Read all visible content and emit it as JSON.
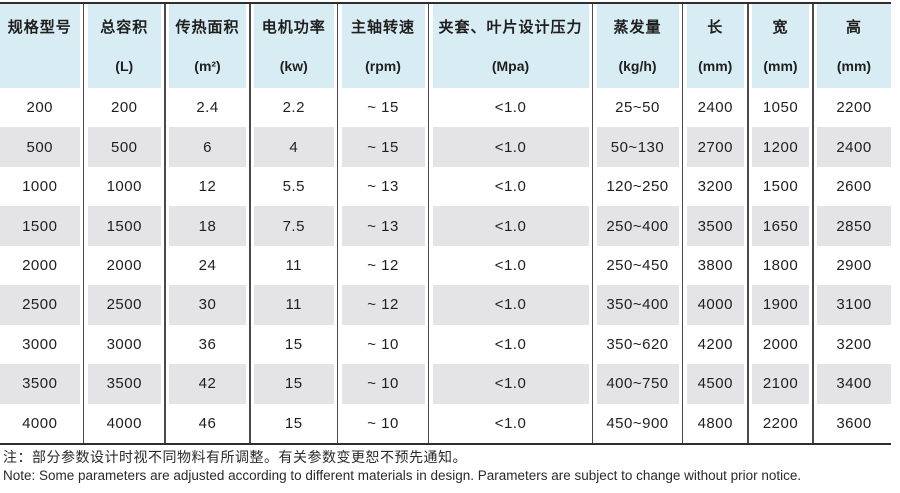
{
  "table": {
    "columns": [
      {
        "title": "规格型号",
        "unit": ""
      },
      {
        "title": "总容积",
        "unit": "(L)"
      },
      {
        "title": "传热面积",
        "unit": "(m²)"
      },
      {
        "title": "电机功率",
        "unit": "(kw)"
      },
      {
        "title": "主轴转速",
        "unit": "(rpm)"
      },
      {
        "title": "夹套、叶片设计压力",
        "unit": "(Mpa)"
      },
      {
        "title": "蒸发量",
        "unit": "(kg/h)"
      },
      {
        "title": "长",
        "unit": "(mm)"
      },
      {
        "title": "宽",
        "unit": "(mm)"
      },
      {
        "title": "高",
        "unit": "(mm)"
      }
    ],
    "rows": [
      [
        "200",
        "200",
        "2.4",
        "2.2",
        "~ 15",
        "<1.0",
        "25~50",
        "2400",
        "1050",
        "2200"
      ],
      [
        "500",
        "500",
        "6",
        "4",
        "~ 15",
        "<1.0",
        "50~130",
        "2700",
        "1200",
        "2400"
      ],
      [
        "1000",
        "1000",
        "12",
        "5.5",
        "~ 13",
        "<1.0",
        "120~250",
        "3200",
        "1500",
        "2600"
      ],
      [
        "1500",
        "1500",
        "18",
        "7.5",
        "~ 13",
        "<1.0",
        "250~400",
        "3500",
        "1650",
        "2850"
      ],
      [
        "2000",
        "2000",
        "24",
        "11",
        "~ 12",
        "<1.0",
        "250~450",
        "3800",
        "1800",
        "2900"
      ],
      [
        "2500",
        "2500",
        "30",
        "11",
        "~ 12",
        "<1.0",
        "350~400",
        "4000",
        "1900",
        "3100"
      ],
      [
        "3000",
        "3000",
        "36",
        "15",
        "~ 10",
        "<1.0",
        "350~620",
        "4200",
        "2000",
        "3200"
      ],
      [
        "3500",
        "3500",
        "42",
        "15",
        "~ 10",
        "<1.0",
        "400~750",
        "4500",
        "2100",
        "3400"
      ],
      [
        "4000",
        "4000",
        "46",
        "15",
        "~ 10",
        "<1.0",
        "450~900",
        "4800",
        "2200",
        "3600"
      ]
    ]
  },
  "notes": {
    "zh": "注：部分参数设计时视不同物料有所调整。有关参数变更恕不预先通知。",
    "en": "Note: Some parameters are adjusted according to different materials in design. Parameters are subject to change without prior notice."
  },
  "colors": {
    "header_bg": "#d8edf3",
    "stripe_bg": "#e4e4e6",
    "divider_line": "#4a4a4a",
    "rule_line": "#2e2e2e",
    "text": "#1f1f1f"
  }
}
